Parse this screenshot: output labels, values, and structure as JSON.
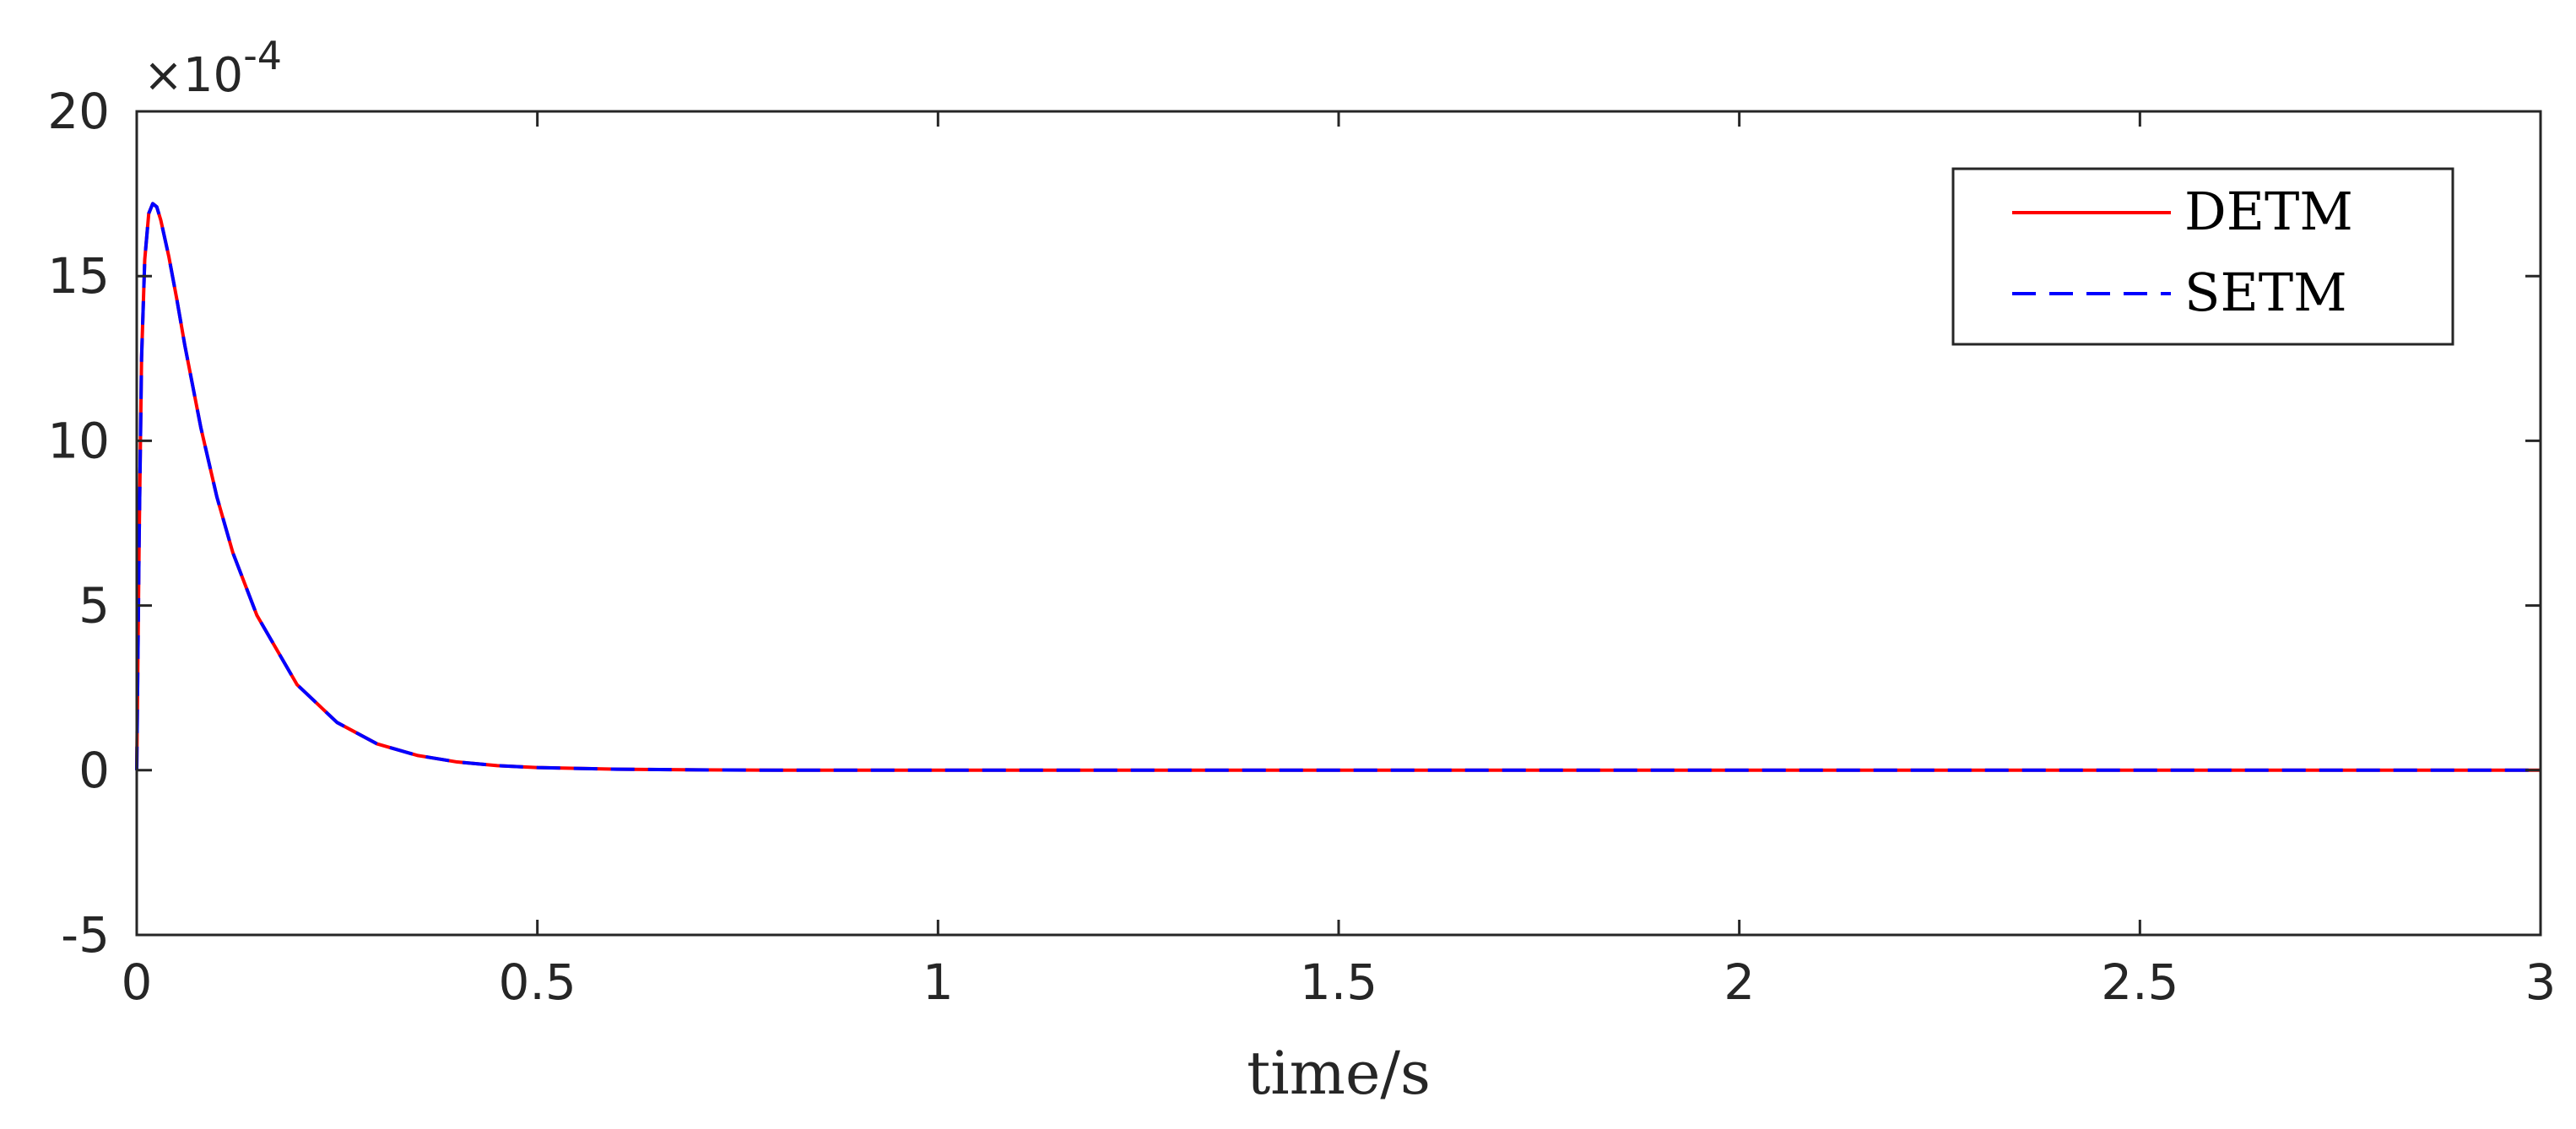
{
  "chart_data": {
    "type": "line",
    "title": "",
    "xlabel": "time/s",
    "ylabel": "",
    "xlim": [
      0,
      3
    ],
    "ylim": [
      -5,
      20
    ],
    "y_scale_factor": {
      "base": "×10",
      "exponent": "-4"
    },
    "xticks": [
      0,
      0.5,
      1,
      1.5,
      2,
      2.5,
      3
    ],
    "xtick_labels": [
      "0",
      "0.5",
      "1",
      "1.5",
      "2",
      "2.5",
      "3"
    ],
    "yticks": [
      -5,
      0,
      5,
      10,
      15,
      20
    ],
    "ytick_labels": [
      "-5",
      "0",
      "5",
      "10",
      "15",
      "20"
    ],
    "grid": false,
    "legend_position": "top-right",
    "series": [
      {
        "name": "DETM",
        "color": "#ff0000",
        "style": "solid",
        "x": [
          0,
          0.003,
          0.006,
          0.01,
          0.015,
          0.02,
          0.025,
          0.03,
          0.04,
          0.05,
          0.06,
          0.08,
          0.1,
          0.12,
          0.15,
          0.2,
          0.25,
          0.3,
          0.35,
          0.4,
          0.45,
          0.5,
          0.6,
          0.7,
          0.8,
          1,
          1.5,
          2,
          2.5,
          3
        ],
        "y": [
          0,
          7,
          12.5,
          15.5,
          16.9,
          17.2,
          17.1,
          16.7,
          15.6,
          14.3,
          12.9,
          10.4,
          8.3,
          6.6,
          4.7,
          2.6,
          1.45,
          0.8,
          0.45,
          0.25,
          0.14,
          0.08,
          0.03,
          0.01,
          0,
          0,
          0,
          0,
          0,
          0
        ]
      },
      {
        "name": "SETM",
        "color": "#0000ff",
        "style": "dashed",
        "x": [
          0,
          0.003,
          0.006,
          0.01,
          0.015,
          0.02,
          0.025,
          0.03,
          0.04,
          0.05,
          0.06,
          0.08,
          0.1,
          0.12,
          0.15,
          0.2,
          0.25,
          0.3,
          0.35,
          0.4,
          0.45,
          0.5,
          0.6,
          0.7,
          0.8,
          1,
          1.5,
          2,
          2.5,
          3
        ],
        "y": [
          0,
          7,
          12.5,
          15.5,
          16.9,
          17.2,
          17.1,
          16.7,
          15.6,
          14.3,
          12.9,
          10.4,
          8.3,
          6.6,
          4.7,
          2.6,
          1.45,
          0.8,
          0.45,
          0.25,
          0.14,
          0.08,
          0.03,
          0.01,
          0,
          0,
          0,
          0,
          0,
          0
        ]
      }
    ]
  }
}
